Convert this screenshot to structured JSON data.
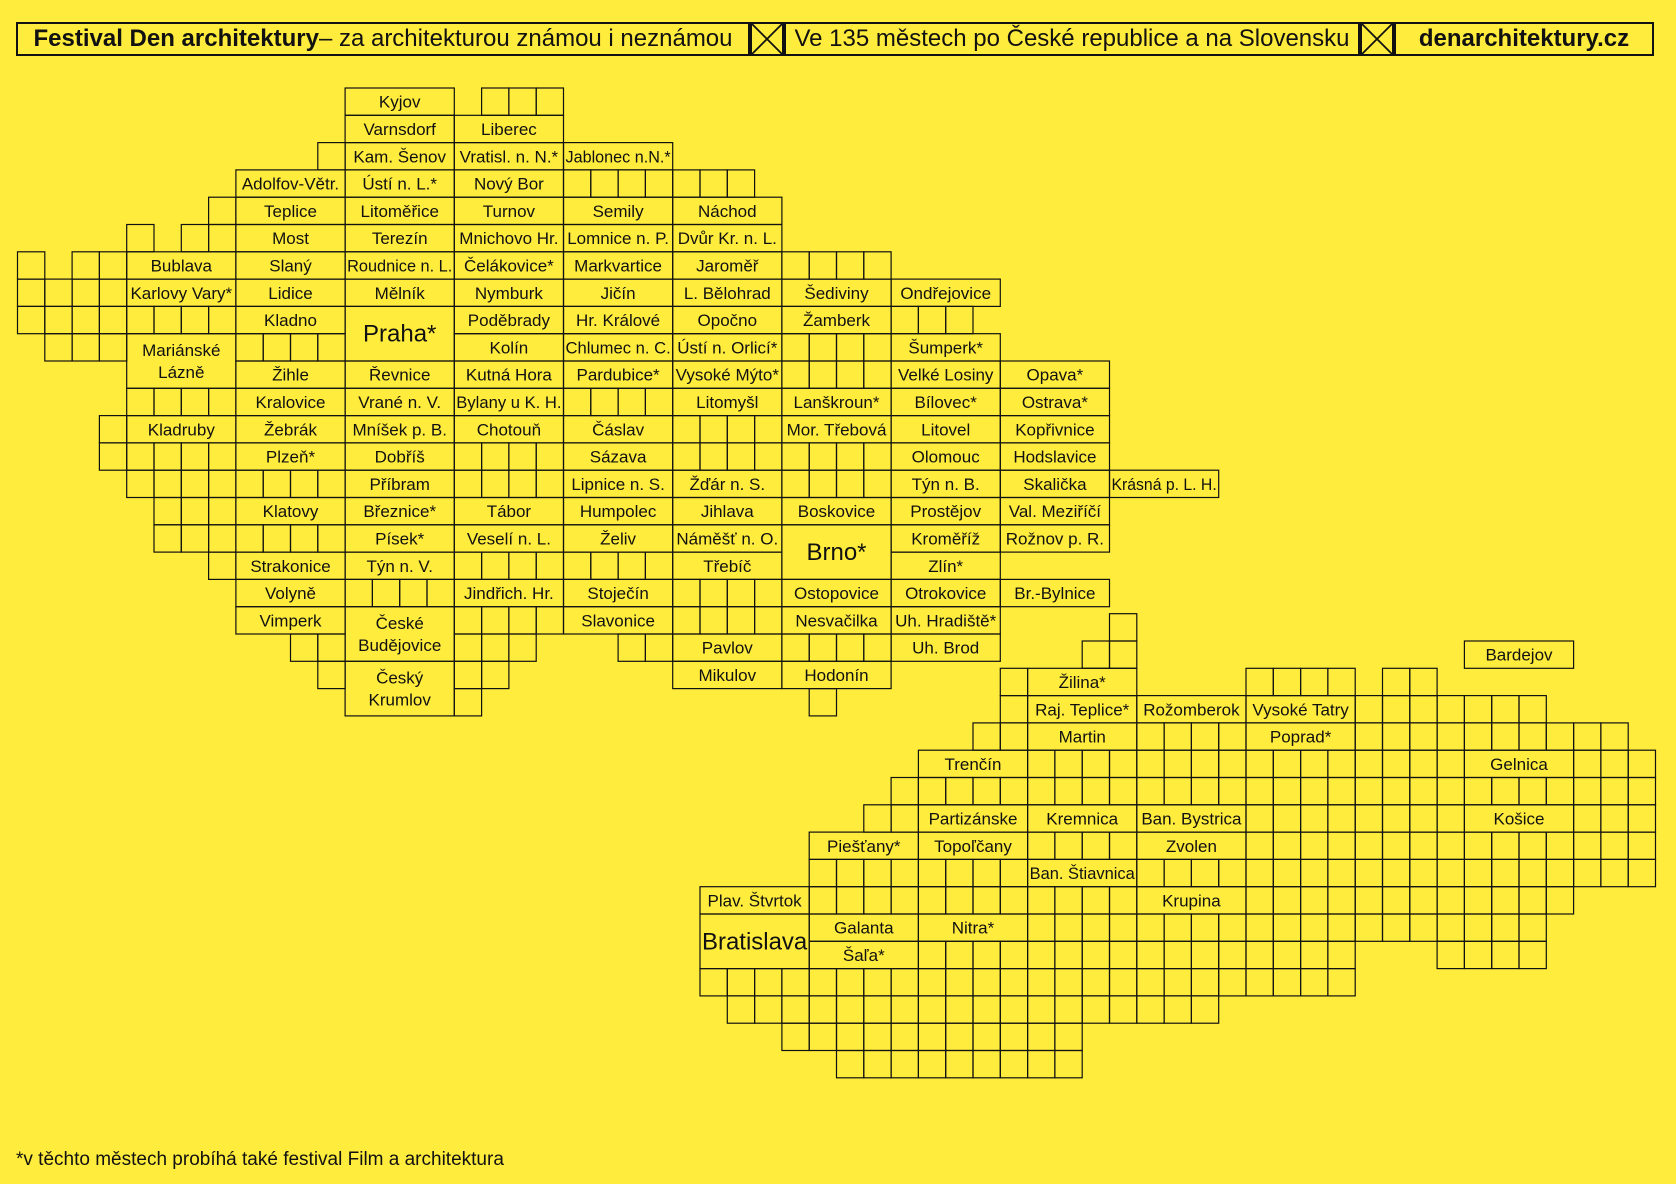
{
  "header": {
    "left_bold": "Festival Den architektury",
    "left_rest": " – za architekturou známou i neznámou",
    "middle": "Ve 135 městech po České republice a na Slovensku",
    "right": "denarchitektury.cz",
    "separator_icon": "cross-box-icon"
  },
  "footnote": "*v těchto městech probíhá také festival Film a architektura",
  "czech_cities": [
    {
      "n": "Kyjov",
      "c": 12,
      "r": 0
    },
    {
      "n": "Varnsdorf",
      "c": 12,
      "r": 1
    },
    {
      "n": "Liberec",
      "c": 16,
      "r": 1
    },
    {
      "n": "Kam. Šenov",
      "c": 12,
      "r": 2
    },
    {
      "n": "Vratisl. n. N.*",
      "c": 16,
      "r": 2
    },
    {
      "n": "Jablonec n.N.*",
      "c": 20,
      "r": 2
    },
    {
      "n": "Adolfov-Větr.",
      "c": 8,
      "r": 3
    },
    {
      "n": "Ústí n. L.*",
      "c": 12,
      "r": 3
    },
    {
      "n": "Nový Bor",
      "c": 16,
      "r": 3
    },
    {
      "n": "Teplice",
      "c": 8,
      "r": 4
    },
    {
      "n": "Litoměřice",
      "c": 12,
      "r": 4
    },
    {
      "n": "Turnov",
      "c": 16,
      "r": 4
    },
    {
      "n": "Semily",
      "c": 20,
      "r": 4
    },
    {
      "n": "Náchod",
      "c": 24,
      "r": 4
    },
    {
      "n": "Most",
      "c": 8,
      "r": 5
    },
    {
      "n": "Terezín",
      "c": 12,
      "r": 5
    },
    {
      "n": "Mnichovo Hr.",
      "c": 16,
      "r": 5
    },
    {
      "n": "Lomnice n. P.",
      "c": 20,
      "r": 5
    },
    {
      "n": "Dvůr Kr. n. L.",
      "c": 24,
      "r": 5
    },
    {
      "n": "Bublava",
      "c": 4,
      "r": 6
    },
    {
      "n": "Slaný",
      "c": 8,
      "r": 6
    },
    {
      "n": "Roudnice n. L.",
      "c": 12,
      "r": 6
    },
    {
      "n": "Čelákovice*",
      "c": 16,
      "r": 6
    },
    {
      "n": "Markvartice",
      "c": 20,
      "r": 6
    },
    {
      "n": "Jaroměř",
      "c": 24,
      "r": 6
    },
    {
      "n": "Karlovy Vary*",
      "c": 4,
      "r": 7
    },
    {
      "n": "Lidice",
      "c": 8,
      "r": 7
    },
    {
      "n": "Mělník",
      "c": 12,
      "r": 7
    },
    {
      "n": "Nymburk",
      "c": 16,
      "r": 7
    },
    {
      "n": "Jičín",
      "c": 20,
      "r": 7
    },
    {
      "n": "L. Bělohrad",
      "c": 24,
      "r": 7
    },
    {
      "n": "Šediviny",
      "c": 28,
      "r": 7
    },
    {
      "n": "Ondřejovice",
      "c": 32,
      "r": 7
    },
    {
      "n": "Kladno",
      "c": 8,
      "r": 8
    },
    {
      "n": "Poděbrady",
      "c": 16,
      "r": 8
    },
    {
      "n": "Hr. Králové",
      "c": 20,
      "r": 8
    },
    {
      "n": "Opočno",
      "c": 24,
      "r": 8
    },
    {
      "n": "Žamberk",
      "c": 28,
      "r": 8
    },
    {
      "n": "Kolín",
      "c": 16,
      "r": 9
    },
    {
      "n": "Chlumec n. C.",
      "c": 20,
      "r": 9
    },
    {
      "n": "Ústí n. Orlicí*",
      "c": 24,
      "r": 9
    },
    {
      "n": "Šumperk*",
      "c": 32,
      "r": 9
    },
    {
      "n": "Žihle",
      "c": 8,
      "r": 10
    },
    {
      "n": "Řevnice",
      "c": 12,
      "r": 10
    },
    {
      "n": "Kutná Hora",
      "c": 16,
      "r": 10
    },
    {
      "n": "Pardubice*",
      "c": 20,
      "r": 10
    },
    {
      "n": "Vysoké Mýto*",
      "c": 24,
      "r": 10
    },
    {
      "n": "Velké Losiny",
      "c": 32,
      "r": 10
    },
    {
      "n": "Opava*",
      "c": 36,
      "r": 10
    },
    {
      "n": "Kralovice",
      "c": 8,
      "r": 11
    },
    {
      "n": "Vrané n. V.",
      "c": 12,
      "r": 11
    },
    {
      "n": "Bylany u K. H.",
      "c": 16,
      "r": 11
    },
    {
      "n": "Litomyšl",
      "c": 24,
      "r": 11
    },
    {
      "n": "Lanškroun*",
      "c": 28,
      "r": 11
    },
    {
      "n": "Bílovec*",
      "c": 32,
      "r": 11
    },
    {
      "n": "Ostrava*",
      "c": 36,
      "r": 11
    },
    {
      "n": "Kladruby",
      "c": 4,
      "r": 12
    },
    {
      "n": "Žebrák",
      "c": 8,
      "r": 12
    },
    {
      "n": "Mníšek p. B.",
      "c": 12,
      "r": 12
    },
    {
      "n": "Chotouň",
      "c": 16,
      "r": 12
    },
    {
      "n": "Čáslav",
      "c": 20,
      "r": 12
    },
    {
      "n": "Mor. Třebová",
      "c": 28,
      "r": 12
    },
    {
      "n": "Litovel",
      "c": 32,
      "r": 12
    },
    {
      "n": "Kopřivnice",
      "c": 36,
      "r": 12
    },
    {
      "n": "Plzeň*",
      "c": 8,
      "r": 13
    },
    {
      "n": "Dobříš",
      "c": 12,
      "r": 13
    },
    {
      "n": "Sázava",
      "c": 20,
      "r": 13
    },
    {
      "n": "Olomouc",
      "c": 32,
      "r": 13
    },
    {
      "n": "Hodslavice",
      "c": 36,
      "r": 13
    },
    {
      "n": "Příbram",
      "c": 12,
      "r": 14
    },
    {
      "n": "Lipnice n. S.",
      "c": 20,
      "r": 14
    },
    {
      "n": "Žďár n. S.",
      "c": 24,
      "r": 14
    },
    {
      "n": "Týn n. B.",
      "c": 32,
      "r": 14
    },
    {
      "n": "Skalička",
      "c": 36,
      "r": 14
    },
    {
      "n": "Krásná p. L. H.",
      "c": 40,
      "r": 14
    },
    {
      "n": "Klatovy",
      "c": 8,
      "r": 15
    },
    {
      "n": "Březnice*",
      "c": 12,
      "r": 15
    },
    {
      "n": "Tábor",
      "c": 16,
      "r": 15
    },
    {
      "n": "Humpolec",
      "c": 20,
      "r": 15
    },
    {
      "n": "Jihlava",
      "c": 24,
      "r": 15
    },
    {
      "n": "Boskovice",
      "c": 28,
      "r": 15
    },
    {
      "n": "Prostějov",
      "c": 32,
      "r": 15
    },
    {
      "n": "Val. Meziříčí",
      "c": 36,
      "r": 15
    },
    {
      "n": "Písek*",
      "c": 12,
      "r": 16
    },
    {
      "n": "Veselí n. L.",
      "c": 16,
      "r": 16
    },
    {
      "n": "Želiv",
      "c": 20,
      "r": 16
    },
    {
      "n": "Náměšť n. O.",
      "c": 24,
      "r": 16
    },
    {
      "n": "Kroměříž",
      "c": 32,
      "r": 16
    },
    {
      "n": "Rožnov p. R.",
      "c": 36,
      "r": 16
    },
    {
      "n": "Strakonice",
      "c": 8,
      "r": 17
    },
    {
      "n": "Týn n. V.",
      "c": 12,
      "r": 17
    },
    {
      "n": "Třebíč",
      "c": 24,
      "r": 17
    },
    {
      "n": "Zlín*",
      "c": 32,
      "r": 17
    },
    {
      "n": "Volyně",
      "c": 8,
      "r": 18
    },
    {
      "n": "Jindřich. Hr.",
      "c": 16,
      "r": 18
    },
    {
      "n": "Stoječín",
      "c": 20,
      "r": 18
    },
    {
      "n": "Ostopovice",
      "c": 28,
      "r": 18
    },
    {
      "n": "Otrokovice",
      "c": 32,
      "r": 18
    },
    {
      "n": "Br.-Bylnice",
      "c": 36,
      "r": 18
    },
    {
      "n": "Vimperk",
      "c": 8,
      "r": 19
    },
    {
      "n": "Slavonice",
      "c": 20,
      "r": 19
    },
    {
      "n": "Nesvačilka",
      "c": 28,
      "r": 19
    },
    {
      "n": "Uh. Hradiště*",
      "c": 32,
      "r": 19
    },
    {
      "n": "Pavlov",
      "c": 24,
      "r": 20
    },
    {
      "n": "Uh. Brod",
      "c": 32,
      "r": 20
    },
    {
      "n": "Mikulov",
      "c": 24,
      "r": 21
    },
    {
      "n": "Hodonín",
      "c": 28,
      "r": 21
    }
  ],
  "czech_multi": [
    {
      "n": [
        "Praha*"
      ],
      "c": 12,
      "r": 8,
      "h": 2,
      "big": true
    },
    {
      "n": [
        "Mariánské",
        "Lázně"
      ],
      "c": 4,
      "r": 9,
      "h": 2
    },
    {
      "n": [
        "Brno*"
      ],
      "c": 28,
      "r": 16,
      "h": 2,
      "big": true
    },
    {
      "n": [
        "České",
        "Budějovice"
      ],
      "c": 12,
      "r": 19,
      "h": 2
    },
    {
      "n": [
        "Český",
        "Krumlov"
      ],
      "c": 12,
      "r": 21,
      "h": 2
    }
  ],
  "slovak_cities": [
    {
      "n": "Bardejov",
      "c": 53,
      "r": 23
    },
    {
      "n": "Žilina*",
      "c": 37,
      "r": 24
    },
    {
      "n": "Raj. Teplice*",
      "c": 37,
      "r": 25
    },
    {
      "n": "Rožomberok",
      "c": 41,
      "r": 25
    },
    {
      "n": "Vysoké Tatry",
      "c": 45,
      "r": 25
    },
    {
      "n": "Martin",
      "c": 37,
      "r": 26
    },
    {
      "n": "Poprad*",
      "c": 45,
      "r": 26
    },
    {
      "n": "Trenčín",
      "c": 33,
      "r": 27
    },
    {
      "n": "Gelnica",
      "c": 53,
      "r": 27
    },
    {
      "n": "Partizánske",
      "c": 33,
      "r": 29
    },
    {
      "n": "Kremnica",
      "c": 37,
      "r": 29
    },
    {
      "n": "Ban. Bystrica",
      "c": 41,
      "r": 29
    },
    {
      "n": "Košice",
      "c": 53,
      "r": 29
    },
    {
      "n": "Piešťany*",
      "c": 29,
      "r": 30
    },
    {
      "n": "Topoľčany",
      "c": 33,
      "r": 30
    },
    {
      "n": "Zvolen",
      "c": 41,
      "r": 30
    },
    {
      "n": "Ban. Štiavnica",
      "c": 37,
      "r": 31
    },
    {
      "n": "Plav. Štvrtok",
      "c": 25,
      "r": 32
    },
    {
      "n": "Krupina",
      "c": 41,
      "r": 32
    },
    {
      "n": "Galanta",
      "c": 29,
      "r": 33
    },
    {
      "n": "Nitra*",
      "c": 33,
      "r": 33
    },
    {
      "n": "Šaľa*",
      "c": 29,
      "r": 34
    }
  ],
  "slovak_multi": [
    {
      "n": [
        "Bratislava"
      ],
      "c": 25,
      "r": 33,
      "h": 2,
      "big": true
    }
  ]
}
